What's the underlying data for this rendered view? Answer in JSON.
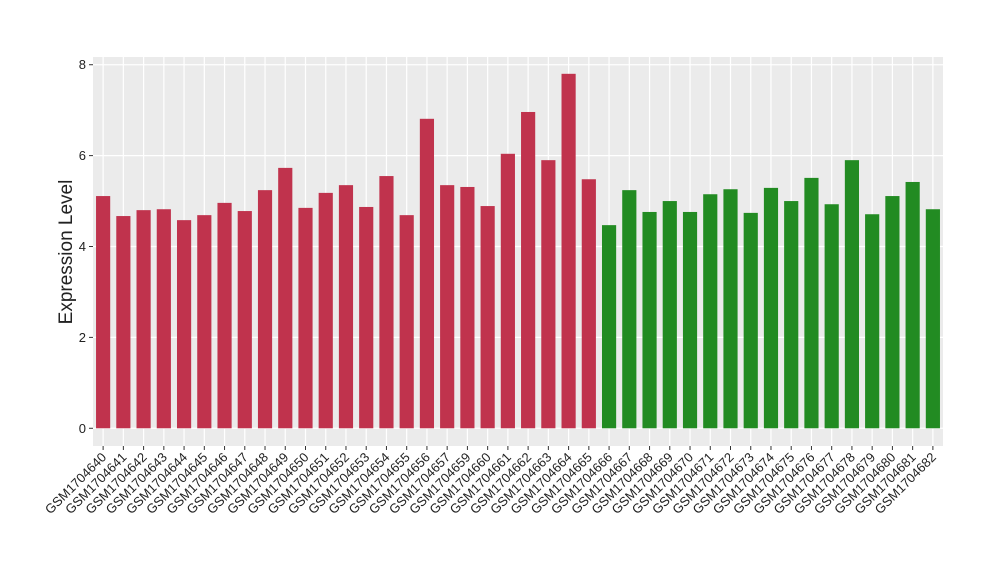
{
  "chart_data": {
    "type": "bar",
    "y_label": "Expression Level",
    "categories": [
      "GSM1704640",
      "GSM1704641",
      "GSM1704642",
      "GSM1704643",
      "GSM1704644",
      "GSM1704645",
      "GSM1704646",
      "GSM1704647",
      "GSM1704648",
      "GSM1704649",
      "GSM1704650",
      "GSM1704651",
      "GSM1704652",
      "GSM1704653",
      "GSM1704654",
      "GSM1704655",
      "GSM1704656",
      "GSM1704657",
      "GSM1704659",
      "GSM1704660",
      "GSM1704661",
      "GSM1704662",
      "GSM1704663",
      "GSM1704664",
      "GSM1704665",
      "GSM1704666",
      "GSM1704667",
      "GSM1704668",
      "GSM1704669",
      "GSM1704670",
      "GSM1704671",
      "GSM1704672",
      "GSM1704673",
      "GSM1704674",
      "GSM1704675",
      "GSM1704676",
      "GSM1704677",
      "GSM1704678",
      "GSM1704679",
      "GSM1704680",
      "GSM1704681",
      "GSM1704682"
    ],
    "values": [
      5.11,
      4.67,
      4.8,
      4.82,
      4.58,
      4.69,
      4.96,
      4.78,
      5.24,
      5.73,
      4.85,
      5.18,
      5.35,
      4.87,
      5.55,
      4.69,
      6.81,
      5.35,
      5.31,
      4.89,
      6.04,
      6.96,
      5.9,
      7.8,
      5.48,
      4.47,
      5.24,
      4.76,
      5.0,
      4.76,
      5.15,
      5.26,
      4.74,
      5.29,
      5.0,
      5.51,
      4.93,
      5.9,
      4.71,
      5.11,
      5.42,
      4.82
    ],
    "colors": [
      "#c0334d",
      "#c0334d",
      "#c0334d",
      "#c0334d",
      "#c0334d",
      "#c0334d",
      "#c0334d",
      "#c0334d",
      "#c0334d",
      "#c0334d",
      "#c0334d",
      "#c0334d",
      "#c0334d",
      "#c0334d",
      "#c0334d",
      "#c0334d",
      "#c0334d",
      "#c0334d",
      "#c0334d",
      "#c0334d",
      "#c0334d",
      "#c0334d",
      "#c0334d",
      "#c0334d",
      "#c0334d",
      "#228b22",
      "#228b22",
      "#228b22",
      "#228b22",
      "#228b22",
      "#228b22",
      "#228b22",
      "#228b22",
      "#228b22",
      "#228b22",
      "#228b22",
      "#228b22",
      "#228b22",
      "#228b22",
      "#228b22",
      "#228b22",
      "#228b22"
    ],
    "ylim": [
      -0.39,
      8.17
    ],
    "yticks": [
      0,
      2,
      4,
      6,
      8
    ],
    "grid": true
  }
}
